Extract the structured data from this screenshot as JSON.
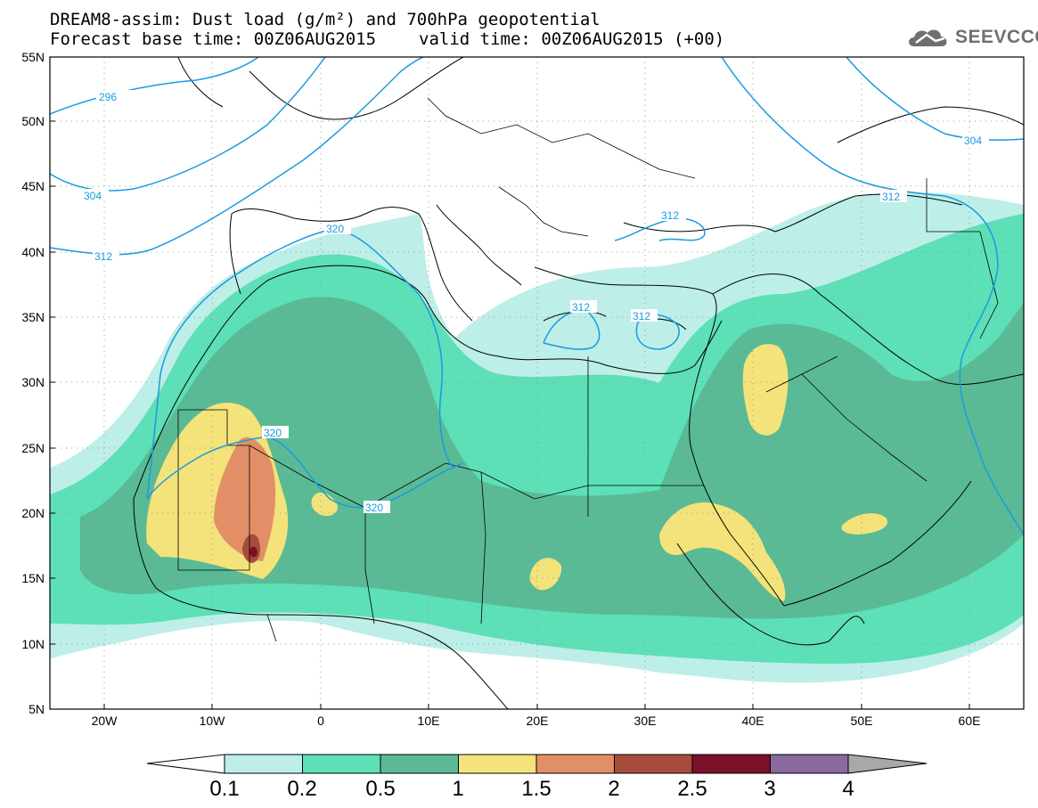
{
  "title": {
    "line1": "DREAM8-assim: Dust load (g/m²) and 700hPa geopotential",
    "base_time": "Forecast base time: 00Z06AUG2015",
    "valid_time": "valid time: 00Z06AUG2015 (+00)"
  },
  "logo": {
    "text": "SEEVCCC",
    "icon": "cloud-icon"
  },
  "map": {
    "lon_range": [
      -25,
      65
    ],
    "lat_range": [
      5,
      55
    ],
    "lat_ticks": [
      "5N",
      "10N",
      "15N",
      "20N",
      "25N",
      "30N",
      "35N",
      "40N",
      "45N",
      "50N",
      "55N"
    ],
    "lon_ticks": [
      "20W",
      "10W",
      "0",
      "10E",
      "20E",
      "30E",
      "40E",
      "50E",
      "60E"
    ],
    "contour_labels": [
      "296",
      "304",
      "312",
      "320",
      "312",
      "320",
      "320",
      "312",
      "312",
      "312",
      "312",
      "304"
    ],
    "contour_color": "#1a9be0",
    "dust_colors": {
      "0.1-0.2": "#bdeee8",
      "0.2-0.5": "#5ddfb7",
      "0.5-1": "#5aba95",
      "1-1.5": "#f3e37a",
      "1.5-2": "#e28f68",
      "2-2.5": "#a54c3c",
      "2.5-3": "#7a1128",
      "3-4": "#8a6a9e"
    }
  },
  "colorbar": {
    "labels": [
      "0.1",
      "0.2",
      "0.5",
      "1",
      "1.5",
      "2",
      "2.5",
      "3",
      "4"
    ],
    "colors": [
      "#bdeee8",
      "#5ddfb7",
      "#5aba95",
      "#f3e37a",
      "#e28f68",
      "#a54c3c",
      "#7a1128",
      "#8a6a9e"
    ],
    "over_color": "#a8a8a8",
    "under_color": "#ffffff"
  }
}
